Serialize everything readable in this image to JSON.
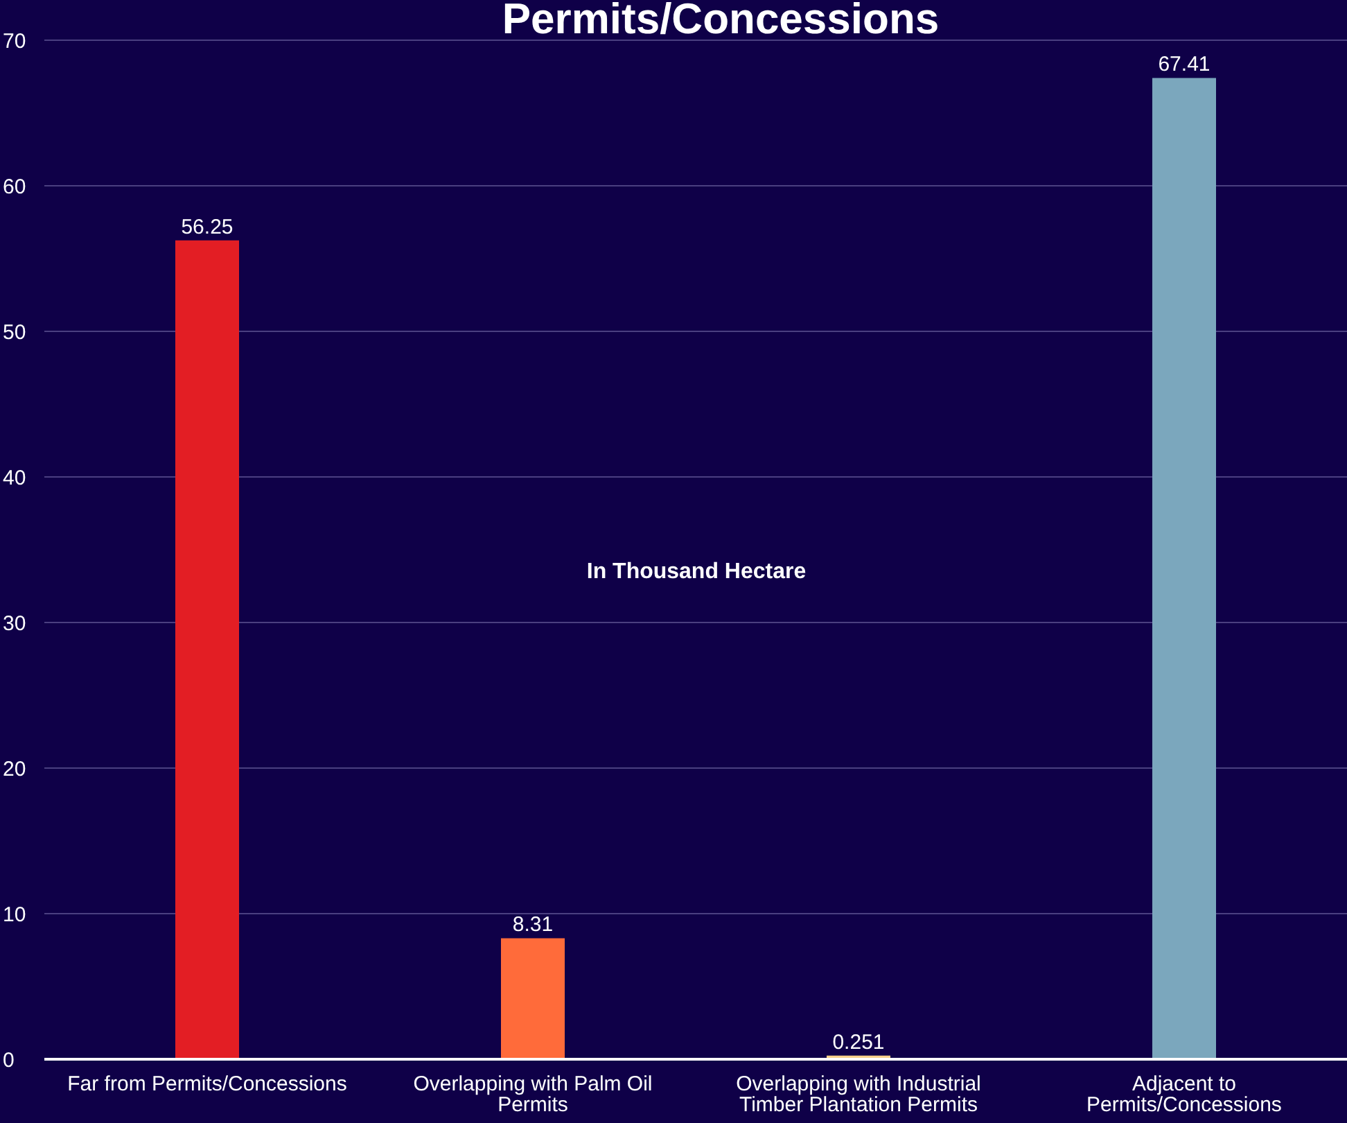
{
  "chart_data": {
    "type": "bar",
    "title": "Permits/Concessions",
    "categories": [
      "Far from Permits/Concessions",
      "Overlapping with Palm Oil Permits",
      "Overlapping with Industrial Timber Plantation Permits",
      "Adjacent to Permits/Concessions"
    ],
    "values": [
      56.25,
      8.31,
      0.251,
      67.41
    ],
    "colors": [
      "#e31e24",
      "#ff6b3a",
      "#f7d08a",
      "#7ba7bd"
    ],
    "ylim": [
      0,
      70
    ],
    "yticks": [
      0,
      10,
      20,
      30,
      40,
      50,
      60,
      70
    ],
    "annotations": [
      "In Thousand Hectare"
    ],
    "data_labels": true,
    "grid": "y"
  }
}
